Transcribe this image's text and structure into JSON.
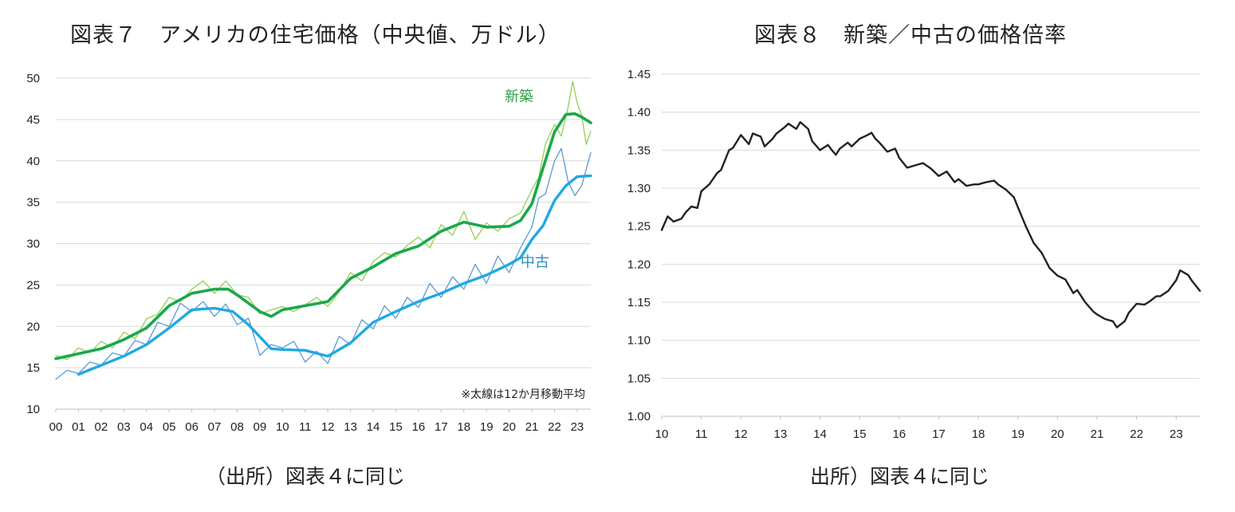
{
  "chart_data": [
    {
      "type": "line",
      "title": "図表７　アメリカの住宅価格（中央値、万ドル）",
      "source": "（出所）図表４に同じ",
      "note": "※太線は12か月移動平均",
      "ylim": [
        10,
        50
      ],
      "yticks": [
        10,
        15,
        20,
        25,
        30,
        35,
        40,
        45,
        50
      ],
      "xlim": [
        2000,
        2023.6
      ],
      "xticks": [
        "00",
        "01",
        "02",
        "03",
        "04",
        "05",
        "06",
        "07",
        "08",
        "09",
        "10",
        "11",
        "12",
        "13",
        "14",
        "15",
        "16",
        "17",
        "18",
        "19",
        "20",
        "21",
        "22",
        "23"
      ],
      "grid": true,
      "colors": {
        "new_raw": "#92d050",
        "new_ma": "#1aa84b",
        "used_raw": "#5b9bd5",
        "used_ma": "#21a9e1",
        "label_new": "#2e9f46",
        "label_used": "#2a8fc0"
      },
      "series": [
        {
          "name": "新築",
          "key": "new_ma",
          "x": [
            2000,
            2001,
            2002,
            2003,
            2004,
            2005,
            2006,
            2007,
            2007.6,
            2008,
            2009,
            2009.5,
            2010,
            2011,
            2012,
            2013,
            2014,
            2015,
            2016,
            2017,
            2018,
            2019,
            2020,
            2020.5,
            2021,
            2021.5,
            2022,
            2022.5,
            2022.9,
            2023.2,
            2023.6
          ],
          "y": [
            16.1,
            16.7,
            17.3,
            18.4,
            19.8,
            22.5,
            24.0,
            24.5,
            24.5,
            23.8,
            21.8,
            21.2,
            22.0,
            22.5,
            23.0,
            25.8,
            27.2,
            28.8,
            29.7,
            31.5,
            32.6,
            32.0,
            32.1,
            32.8,
            34.8,
            39.2,
            43.5,
            45.6,
            45.7,
            45.3,
            44.6
          ]
        },
        {
          "key": "new_raw",
          "x": [
            2000,
            2000.5,
            2001,
            2001.5,
            2002,
            2002.5,
            2003,
            2003.5,
            2004,
            2004.5,
            2005,
            2005.5,
            2006,
            2006.5,
            2007,
            2007.5,
            2008,
            2008.5,
            2009,
            2009.5,
            2010,
            2010.5,
            2011,
            2011.5,
            2012,
            2012.5,
            2013,
            2013.5,
            2014,
            2014.5,
            2015,
            2015.5,
            2016,
            2016.5,
            2017,
            2017.5,
            2018,
            2018.5,
            2019,
            2019.5,
            2020,
            2020.5,
            2021,
            2021.3,
            2021.6,
            2022,
            2022.3,
            2022.6,
            2022.8,
            2023,
            2023.2,
            2023.4,
            2023.6
          ],
          "y": [
            16.5,
            16.0,
            17.4,
            16.8,
            18.2,
            17.4,
            19.3,
            18.5,
            20.9,
            21.5,
            23.5,
            23.0,
            24.5,
            25.5,
            24.0,
            25.5,
            23.8,
            23.5,
            21.5,
            22.0,
            22.4,
            21.8,
            22.6,
            23.5,
            22.4,
            24.2,
            26.5,
            25.5,
            27.8,
            28.9,
            28.4,
            29.8,
            30.8,
            29.5,
            32.3,
            31.0,
            33.9,
            30.5,
            32.5,
            31.5,
            33.0,
            33.7,
            36.5,
            38.0,
            42.0,
            44.4,
            43.0,
            46.5,
            49.6,
            47.0,
            45.5,
            42.0,
            43.6
          ]
        },
        {
          "name": "中古",
          "key": "used_ma",
          "x": [
            2001,
            2002,
            2003,
            2004,
            2005,
            2006,
            2007,
            2007.8,
            2008.5,
            2009.5,
            2010,
            2011,
            2012,
            2013,
            2014,
            2015,
            2016,
            2017,
            2018,
            2019,
            2020,
            2020.5,
            2021,
            2021.5,
            2022,
            2022.5,
            2023,
            2023.6
          ],
          "y": [
            14.2,
            15.3,
            16.4,
            17.8,
            19.8,
            22.0,
            22.2,
            21.8,
            20.2,
            17.3,
            17.2,
            17.1,
            16.4,
            18.0,
            20.5,
            21.8,
            23.0,
            24.0,
            25.2,
            26.2,
            27.5,
            28.3,
            30.5,
            32.2,
            35.2,
            37.0,
            38.1,
            38.2
          ]
        },
        {
          "key": "used_raw",
          "x": [
            2000,
            2000.5,
            2001,
            2001.5,
            2002,
            2002.5,
            2003,
            2003.5,
            2004,
            2004.5,
            2005,
            2005.5,
            2006,
            2006.5,
            2007,
            2007.5,
            2008,
            2008.5,
            2009,
            2009.5,
            2010,
            2010.5,
            2011,
            2011.5,
            2012,
            2012.5,
            2013,
            2013.5,
            2014,
            2014.5,
            2015,
            2015.5,
            2016,
            2016.5,
            2017,
            2017.5,
            2018,
            2018.5,
            2019,
            2019.5,
            2020,
            2020.5,
            2021,
            2021.3,
            2021.6,
            2022,
            2022.3,
            2022.6,
            2022.9,
            2023.2,
            2023.6
          ],
          "y": [
            13.6,
            14.7,
            14.3,
            15.7,
            15.3,
            16.8,
            16.4,
            18.3,
            17.8,
            20.5,
            20.0,
            22.8,
            21.8,
            23.0,
            21.2,
            22.7,
            20.2,
            21.0,
            16.5,
            17.8,
            17.4,
            18.2,
            15.7,
            17.0,
            15.5,
            18.8,
            17.8,
            20.8,
            19.7,
            22.5,
            21.0,
            23.5,
            22.3,
            25.2,
            23.5,
            26.0,
            24.5,
            27.5,
            25.2,
            28.5,
            26.5,
            29.5,
            32.0,
            35.5,
            36.0,
            40.0,
            41.5,
            37.5,
            35.8,
            37.0,
            41.0
          ]
        }
      ],
      "labels": [
        {
          "text": "新築",
          "x": 2019.8,
          "y": 47.2,
          "color_key": "label_new"
        },
        {
          "text": "中古",
          "x": 2020.5,
          "y": 27.2,
          "color_key": "label_used"
        }
      ]
    },
    {
      "type": "line",
      "title": "図表８　新築／中古の価格倍率",
      "source": "出所）図表４に同じ",
      "ylim": [
        1.0,
        1.45
      ],
      "yticks": [
        "1.00",
        "1.05",
        "1.10",
        "1.15",
        "1.20",
        "1.25",
        "1.30",
        "1.35",
        "1.40",
        "1.45"
      ],
      "xlim": [
        2010,
        2023.6
      ],
      "xticks": [
        "10",
        "11",
        "12",
        "13",
        "14",
        "15",
        "16",
        "17",
        "18",
        "19",
        "20",
        "21",
        "22",
        "23"
      ],
      "grid": true,
      "colors": {
        "line": "#222222"
      },
      "series": [
        {
          "key": "ratio",
          "x": [
            2010.0,
            2010.15,
            2010.3,
            2010.5,
            2010.6,
            2010.75,
            2010.9,
            2011.0,
            2011.2,
            2011.4,
            2011.5,
            2011.7,
            2011.8,
            2012.0,
            2012.2,
            2012.3,
            2012.5,
            2012.6,
            2012.8,
            2012.9,
            2013.1,
            2013.2,
            2013.4,
            2013.5,
            2013.7,
            2013.8,
            2014.0,
            2014.2,
            2014.3,
            2014.4,
            2014.5,
            2014.7,
            2014.8,
            2015.0,
            2015.2,
            2015.3,
            2015.4,
            2015.5,
            2015.7,
            2015.9,
            2016.0,
            2016.2,
            2016.4,
            2016.6,
            2016.8,
            2017.0,
            2017.2,
            2017.4,
            2017.5,
            2017.7,
            2017.9,
            2018.0,
            2018.2,
            2018.4,
            2018.5,
            2018.7,
            2018.9,
            2019.0,
            2019.2,
            2019.4,
            2019.6,
            2019.8,
            2020.0,
            2020.2,
            2020.4,
            2020.5,
            2020.7,
            2020.9,
            2021.0,
            2021.2,
            2021.4,
            2021.5,
            2021.7,
            2021.8,
            2022.0,
            2022.2,
            2022.3,
            2022.5,
            2022.6,
            2022.8,
            2022.9,
            2023.0,
            2023.1,
            2023.2,
            2023.3,
            2023.4,
            2023.6
          ],
          "y": [
            1.245,
            1.263,
            1.256,
            1.26,
            1.268,
            1.276,
            1.274,
            1.296,
            1.305,
            1.32,
            1.324,
            1.35,
            1.353,
            1.37,
            1.358,
            1.372,
            1.368,
            1.355,
            1.365,
            1.372,
            1.38,
            1.385,
            1.378,
            1.387,
            1.378,
            1.362,
            1.35,
            1.357,
            1.35,
            1.344,
            1.352,
            1.36,
            1.355,
            1.365,
            1.37,
            1.373,
            1.365,
            1.36,
            1.348,
            1.352,
            1.34,
            1.327,
            1.33,
            1.333,
            1.326,
            1.316,
            1.322,
            1.308,
            1.312,
            1.303,
            1.305,
            1.305,
            1.308,
            1.31,
            1.305,
            1.298,
            1.288,
            1.275,
            1.25,
            1.228,
            1.215,
            1.195,
            1.185,
            1.18,
            1.162,
            1.166,
            1.15,
            1.138,
            1.134,
            1.128,
            1.125,
            1.117,
            1.125,
            1.136,
            1.148,
            1.147,
            1.15,
            1.158,
            1.158,
            1.165,
            1.172,
            1.179,
            1.192,
            1.189,
            1.186,
            1.178,
            1.165
          ]
        }
      ]
    }
  ]
}
